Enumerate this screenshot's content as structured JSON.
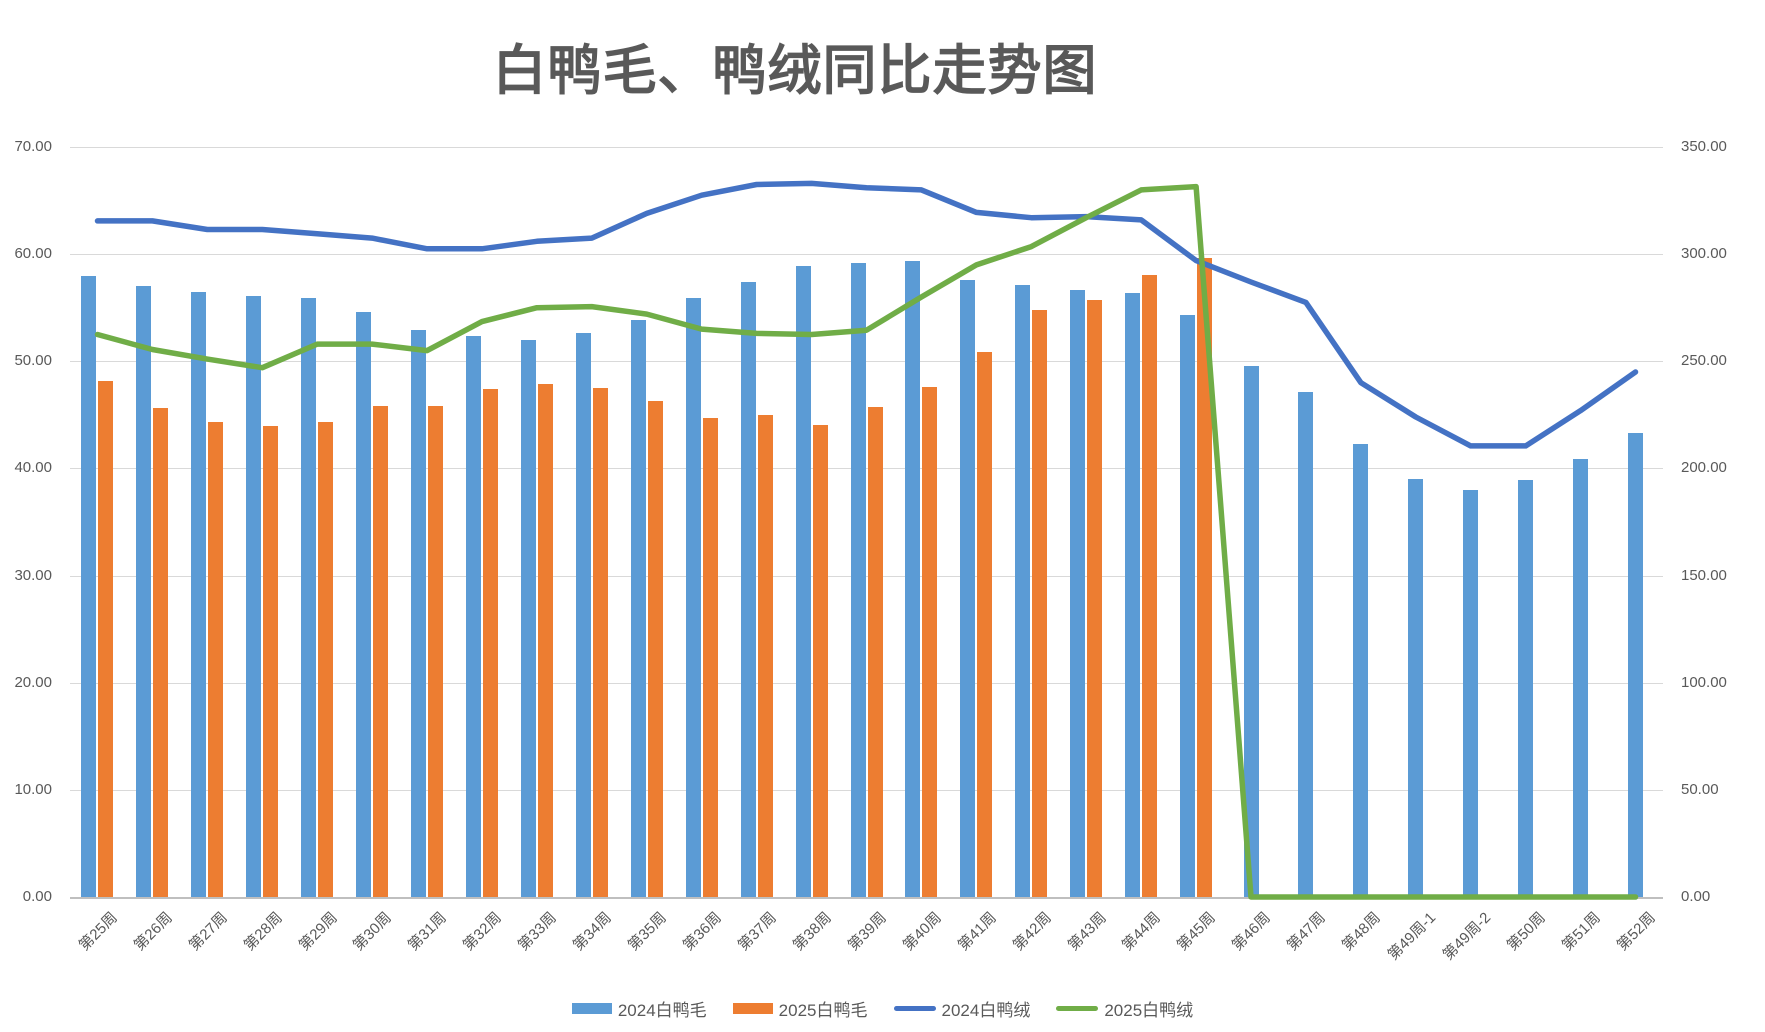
{
  "chart_data": {
    "type": "combo-bar-line",
    "title": "白鸭毛、鸭绒同比走势图",
    "categories": [
      "第25周",
      "第26周",
      "第27周",
      "第28周",
      "第29周",
      "第30周",
      "第31周",
      "第32周",
      "第33周",
      "第34周",
      "第35周",
      "第36周",
      "第37周",
      "第38周",
      "第39周",
      "第40周",
      "第41周",
      "第42周",
      "第43周",
      "第44周",
      "第45周",
      "第46周",
      "第47周",
      "第48周",
      "第49周-1",
      "第49周-2",
      "第50周",
      "第51周",
      "第52周"
    ],
    "left_axis": {
      "min": 0,
      "max": 70,
      "step": 10,
      "tick_labels": [
        "0.00",
        "10.00",
        "20.00",
        "30.00",
        "40.00",
        "50.00",
        "60.00",
        "70.00"
      ]
    },
    "right_axis": {
      "min": 0,
      "max": 350,
      "step": 50,
      "tick_labels": [
        "0.00",
        "50.00",
        "100.00",
        "150.00",
        "200.00",
        "250.00",
        "300.00",
        "350.00"
      ]
    },
    "grid": true,
    "legend_position": "bottom",
    "series": [
      {
        "name": "2024白鸭毛",
        "type": "bar",
        "axis": "left",
        "color": "#5B9BD5",
        "values": [
          58.0,
          57.0,
          56.5,
          56.1,
          55.9,
          54.6,
          52.9,
          52.4,
          52.0,
          52.6,
          53.9,
          55.9,
          57.4,
          58.9,
          59.2,
          59.4,
          57.6,
          57.1,
          56.7,
          56.4,
          54.3,
          49.6,
          47.1,
          42.3,
          39.0,
          38.0,
          38.9,
          40.9,
          43.3
        ]
      },
      {
        "name": "2025白鸭毛",
        "type": "bar",
        "axis": "left",
        "color": "#ED7D31",
        "values": [
          48.2,
          45.6,
          44.3,
          44.0,
          44.3,
          45.8,
          45.8,
          47.4,
          47.9,
          47.5,
          46.3,
          44.7,
          45.0,
          44.1,
          45.7,
          47.6,
          50.9,
          54.8,
          55.7,
          58.1,
          59.6,
          null,
          null,
          null,
          null,
          null,
          null,
          null,
          null
        ]
      },
      {
        "name": "2024白鸭绒",
        "type": "line",
        "axis": "right",
        "color": "#4472C4",
        "values": [
          315.5,
          315.5,
          311.5,
          311.5,
          309.5,
          307.5,
          302.5,
          302.5,
          306.0,
          307.5,
          319.0,
          327.5,
          332.5,
          333.0,
          331.0,
          330.0,
          319.5,
          317.0,
          317.5,
          316.0,
          297.0,
          287.0,
          277.5,
          240.0,
          224.0,
          210.5,
          210.5,
          227.0,
          245.0
        ]
      },
      {
        "name": "2025白鸭绒",
        "type": "line",
        "axis": "right",
        "color": "#70AD47",
        "values": [
          262.5,
          255.5,
          251.0,
          247.0,
          258.0,
          258.0,
          255.0,
          268.5,
          275.0,
          275.5,
          272.0,
          265.0,
          263.0,
          262.5,
          264.5,
          280.0,
          295.0,
          303.5,
          317.0,
          330.0,
          331.5,
          0,
          0,
          0,
          0,
          0,
          0,
          0,
          0
        ]
      }
    ]
  }
}
